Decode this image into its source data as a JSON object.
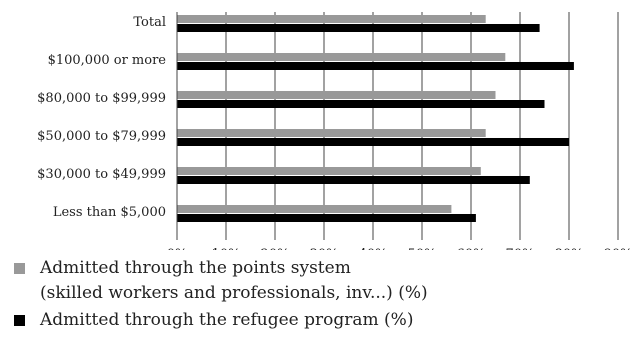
{
  "chart_data": {
    "type": "bar",
    "orientation": "horizontal",
    "categories": [
      "Total",
      "$100,000 or more",
      "$80,000 to $99,999",
      "$50,000 to $79,999",
      "$30,000 to $49,999",
      "Less than $5,000"
    ],
    "series": [
      {
        "name": "Admitted through the points system (skilled workers and professionals, inv...) (%)",
        "legend_lines": [
          "Admitted through the points system",
          "(skilled workers and professionals, inv...) (%)"
        ],
        "color": "#999999",
        "values": [
          63,
          67,
          65,
          63,
          62,
          56
        ]
      },
      {
        "name": "Admitted through the refugee program (%)",
        "legend_lines": [
          "Admitted through the refugee program (%)"
        ],
        "color": "#000000",
        "values": [
          74,
          81,
          75,
          80,
          72,
          61
        ]
      }
    ],
    "xticks": [
      "0%",
      "10%",
      "20%",
      "30%",
      "40%",
      "50%",
      "60%",
      "70%",
      "80%",
      "90%"
    ],
    "xlim": [
      0,
      90
    ],
    "grid": true,
    "legend_position": "bottom"
  }
}
